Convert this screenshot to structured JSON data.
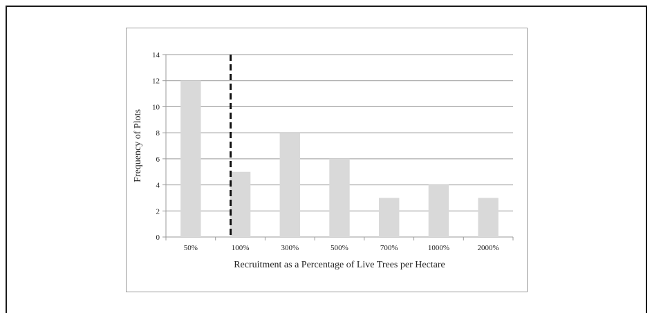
{
  "chart_data": {
    "type": "bar",
    "categories": [
      "50%",
      "100%",
      "300%",
      "500%",
      "700%",
      "1000%",
      "2000%"
    ],
    "values": [
      12,
      5,
      8,
      6,
      3,
      4,
      3
    ],
    "title": "",
    "xlabel": "Recruitment as a Percentage of Live Trees per Hectare",
    "ylabel": "Frequency of Plots",
    "ylim": [
      0,
      14
    ],
    "yticks": [
      0,
      2,
      4,
      6,
      8,
      10,
      12,
      14
    ],
    "grid": true,
    "legend": "none",
    "reference_line": {
      "category": "100%",
      "style": "dashed"
    },
    "colors": {
      "bar": "#d9d9d9",
      "grid": "#9a9a9a",
      "reference_line": "#111111"
    }
  }
}
